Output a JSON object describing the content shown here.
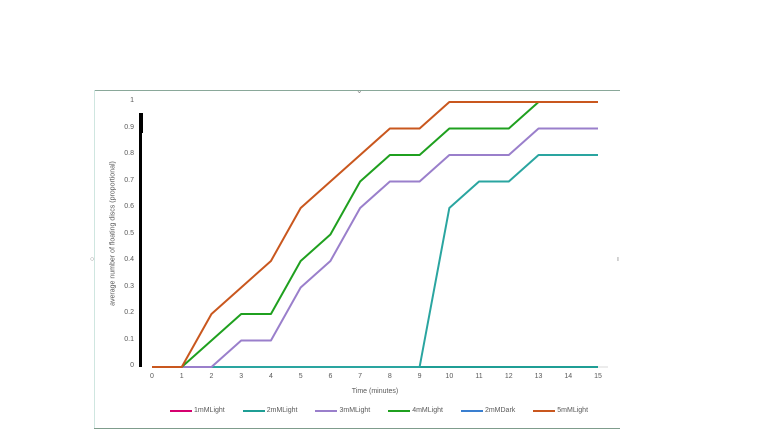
{
  "chart_data": {
    "type": "line",
    "title": "",
    "xlabel": "Time (minutes)",
    "ylabel": "average number of floating discs (proportional)",
    "x": [
      0,
      1,
      2,
      3,
      4,
      5,
      6,
      7,
      8,
      9,
      10,
      11,
      12,
      13,
      14,
      15
    ],
    "xlim": [
      0,
      15
    ],
    "ylim": [
      0,
      1
    ],
    "yticks": [
      "0",
      "0.1",
      "0.2",
      "0.3",
      "0.4",
      "0.5",
      "0.6",
      "0.7",
      "0.8",
      "0.9",
      "1"
    ],
    "xticks": [
      "0",
      "1",
      "2",
      "3",
      "4",
      "5",
      "6",
      "7",
      "8",
      "9",
      "10",
      "11",
      "12",
      "13",
      "14",
      "15"
    ],
    "grid": false,
    "legend_position": "bottom",
    "series": [
      {
        "name": "1mMLight",
        "color": "#d6006f",
        "values": [
          0,
          0,
          0,
          0,
          0,
          0,
          0,
          0,
          0,
          0,
          0,
          0,
          0,
          0,
          0,
          0
        ]
      },
      {
        "name": "2mMLight",
        "color": "#1f9e95",
        "values": [
          0,
          0,
          0,
          0,
          0,
          0,
          0,
          0,
          0,
          0,
          0,
          0,
          0,
          0,
          0,
          0
        ]
      },
      {
        "name": "3mMLight",
        "color": "#9a7fcb",
        "values": [
          0,
          0,
          0,
          0.1,
          0.1,
          0.3,
          0.4,
          0.6,
          0.7,
          0.7,
          0.8,
          0.8,
          0.8,
          0.9,
          0.9,
          0.9
        ]
      },
      {
        "name": "4mMLight",
        "color": "#1fa01f",
        "values": [
          0,
          0,
          0.1,
          0.2,
          0.2,
          0.4,
          0.5,
          0.7,
          0.8,
          0.8,
          0.9,
          0.9,
          0.9,
          1,
          1,
          1
        ]
      },
      {
        "name": "2mMDark",
        "color": "#2aa5a0",
        "values": [
          0,
          0,
          0,
          0,
          0,
          0,
          0,
          0,
          0,
          0,
          0.6,
          0.7,
          0.7,
          0.8,
          0.8,
          0.8
        ]
      },
      {
        "name": "5mMLight",
        "color": "#c9571e",
        "values": [
          0,
          0,
          0.2,
          0.3,
          0.4,
          0.6,
          0.7,
          0.8,
          0.9,
          0.9,
          1,
          1,
          1,
          1,
          1,
          1
        ]
      }
    ],
    "baseline_series_color": "#3a7fd0"
  },
  "labels": {
    "xlabel": "Time (minutes)",
    "ylabel": "average number of floating discs (proportional)"
  }
}
